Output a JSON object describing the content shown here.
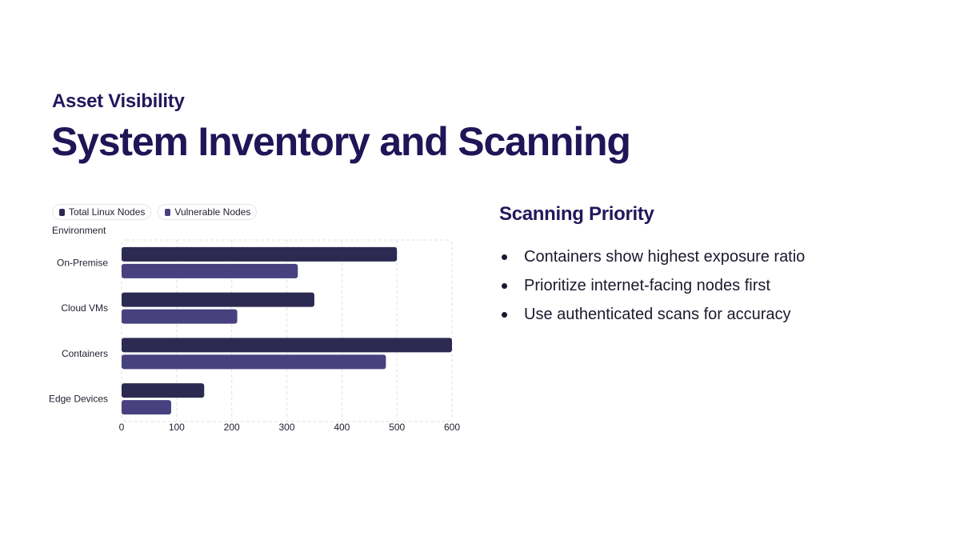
{
  "header": {
    "kicker": "Asset Visibility",
    "title": "System Inventory and Scanning"
  },
  "chart_data": {
    "type": "bar",
    "orientation": "horizontal",
    "ylabel": "Environment",
    "categories": [
      "On-Premise",
      "Cloud VMs",
      "Containers",
      "Edge Devices"
    ],
    "series": [
      {
        "name": "Total Linux Nodes",
        "color": "#2d2a52",
        "values": [
          500,
          350,
          600,
          150
        ]
      },
      {
        "name": "Vulnerable Nodes",
        "color": "#48417f",
        "values": [
          320,
          210,
          480,
          90
        ]
      }
    ],
    "xlim": [
      0,
      600
    ],
    "xticks": [
      0,
      100,
      200,
      300,
      400,
      500,
      600
    ],
    "grid": true,
    "legend_position": "top-left"
  },
  "panel": {
    "heading": "Scanning Priority",
    "bullets": [
      "Containers show highest exposure ratio",
      "Prioritize internet-facing nodes first",
      "Use authenticated scans for accuracy"
    ]
  }
}
